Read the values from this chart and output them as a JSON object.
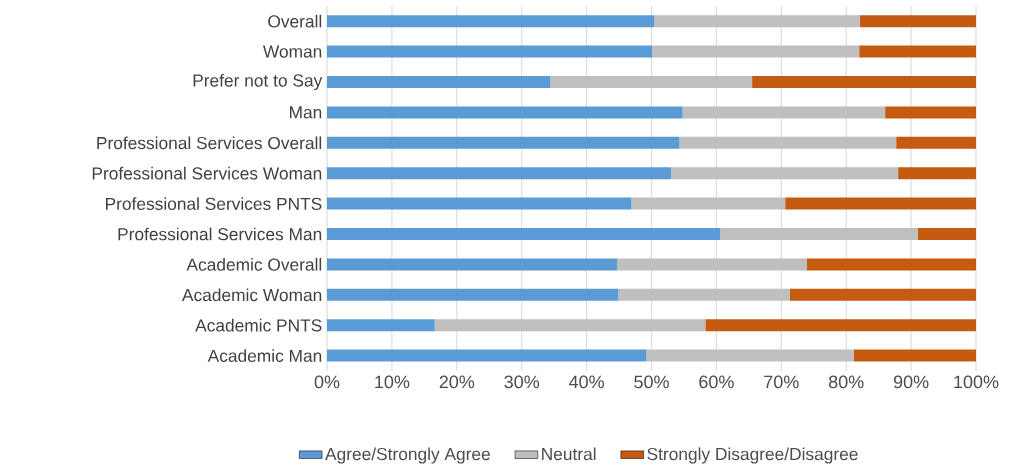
{
  "chart_data": {
    "type": "bar",
    "orientation": "horizontal",
    "stacked": true,
    "categories": [
      "Overall",
      "Woman",
      "Prefer not to Say",
      "Man",
      "Professional Services  Overall",
      "Professional Services Woman",
      "Professional Services PNTS",
      "Professional Services Man",
      "Academic Overall",
      "Academic Woman",
      "Academic PNTS",
      "Academic Man"
    ],
    "series": [
      {
        "name": "Agree/Strongly Agree",
        "color": "#5b9bd5",
        "values": [
          50.4,
          50.1,
          34.4,
          54.8,
          54.3,
          53.0,
          46.9,
          60.6,
          44.7,
          44.9,
          16.6,
          49.2
        ]
      },
      {
        "name": "Neutral",
        "color": "#bfbfbf",
        "values": [
          31.7,
          31.9,
          31.1,
          31.2,
          33.4,
          35.0,
          23.7,
          30.4,
          29.2,
          26.4,
          41.7,
          32.0
        ]
      },
      {
        "name": "Strongly Disagree/Disagree",
        "color": "#c55a11",
        "values": [
          17.9,
          18.0,
          34.5,
          14.0,
          12.3,
          12.0,
          29.4,
          9.0,
          26.1,
          28.7,
          41.7,
          18.8
        ]
      }
    ],
    "xlim": [
      0,
      100
    ],
    "xticks": [
      {
        "value": 0,
        "label": "0%"
      },
      {
        "value": 10,
        "label": "10%"
      },
      {
        "value": 20,
        "label": "20%"
      },
      {
        "value": 30,
        "label": "30%"
      },
      {
        "value": 40,
        "label": "40%"
      },
      {
        "value": 50,
        "label": "50%"
      },
      {
        "value": 60,
        "label": "60%"
      },
      {
        "value": 70,
        "label": "70%"
      },
      {
        "value": 80,
        "label": "80%"
      },
      {
        "value": 90,
        "label": "90%"
      },
      {
        "value": 100,
        "label": "100%"
      }
    ],
    "grid": "x",
    "legend": "bottom"
  }
}
